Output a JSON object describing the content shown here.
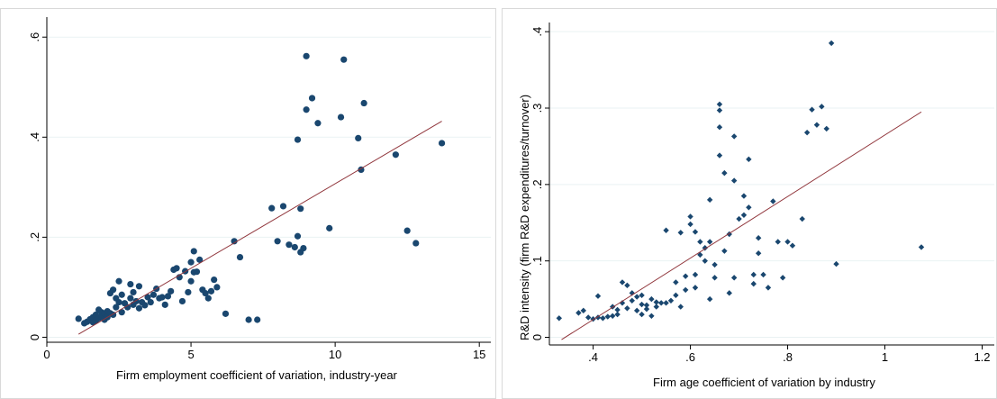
{
  "colors": {
    "marker": "#1a476f",
    "fit_line": "#90353b",
    "grid": "#eaf2f3",
    "axis": "#000000"
  },
  "chart_data": [
    {
      "type": "scatter",
      "marker": "circle",
      "title": "",
      "xlabel": "Firm employment coefficient of variation, industry-year",
      "ylabel": "",
      "xlim": [
        0,
        15.4
      ],
      "ylim": [
        -0.01,
        0.64
      ],
      "xticks": [
        0,
        5,
        10,
        15
      ],
      "xtick_labels": [
        "0",
        "5",
        "10",
        "15"
      ],
      "yticks": [
        0,
        0.2,
        0.4,
        0.6
      ],
      "ytick_labels": [
        "0",
        ".2",
        ".4",
        ".6"
      ],
      "grid": true,
      "fit_line": {
        "x": [
          1.1,
          13.7
        ],
        "y": [
          0.006,
          0.432
        ]
      },
      "points": [
        [
          1.1,
          0.037
        ],
        [
          1.3,
          0.028
        ],
        [
          1.4,
          0.031
        ],
        [
          1.5,
          0.036
        ],
        [
          1.6,
          0.03
        ],
        [
          1.6,
          0.04
        ],
        [
          1.7,
          0.045
        ],
        [
          1.7,
          0.033
        ],
        [
          1.8,
          0.055
        ],
        [
          1.8,
          0.038
        ],
        [
          1.9,
          0.05
        ],
        [
          1.9,
          0.042
        ],
        [
          2.0,
          0.035
        ],
        [
          2.0,
          0.047
        ],
        [
          2.1,
          0.052
        ],
        [
          2.1,
          0.04
        ],
        [
          2.2,
          0.048
        ],
        [
          2.2,
          0.088
        ],
        [
          2.3,
          0.045
        ],
        [
          2.3,
          0.095
        ],
        [
          2.4,
          0.078
        ],
        [
          2.4,
          0.06
        ],
        [
          2.5,
          0.112
        ],
        [
          2.5,
          0.07
        ],
        [
          2.6,
          0.05
        ],
        [
          2.6,
          0.085
        ],
        [
          2.7,
          0.068
        ],
        [
          2.8,
          0.06
        ],
        [
          2.9,
          0.106
        ],
        [
          2.9,
          0.078
        ],
        [
          3.0,
          0.09
        ],
        [
          3.0,
          0.065
        ],
        [
          3.1,
          0.072
        ],
        [
          3.2,
          0.058
        ],
        [
          3.2,
          0.102
        ],
        [
          3.3,
          0.07
        ],
        [
          3.4,
          0.064
        ],
        [
          3.5,
          0.08
        ],
        [
          3.6,
          0.07
        ],
        [
          3.7,
          0.085
        ],
        [
          3.8,
          0.097
        ],
        [
          3.9,
          0.078
        ],
        [
          4.0,
          0.08
        ],
        [
          4.1,
          0.065
        ],
        [
          4.2,
          0.082
        ],
        [
          4.3,
          0.092
        ],
        [
          4.4,
          0.135
        ],
        [
          4.5,
          0.138
        ],
        [
          4.6,
          0.12
        ],
        [
          4.7,
          0.072
        ],
        [
          4.8,
          0.132
        ],
        [
          4.9,
          0.09
        ],
        [
          5.0,
          0.112
        ],
        [
          5.0,
          0.15
        ],
        [
          5.1,
          0.13
        ],
        [
          5.1,
          0.172
        ],
        [
          5.2,
          0.131
        ],
        [
          5.3,
          0.155
        ],
        [
          5.4,
          0.095
        ],
        [
          5.5,
          0.088
        ],
        [
          5.6,
          0.078
        ],
        [
          5.7,
          0.092
        ],
        [
          5.8,
          0.115
        ],
        [
          5.9,
          0.1
        ],
        [
          6.2,
          0.047
        ],
        [
          6.5,
          0.192
        ],
        [
          6.7,
          0.16
        ],
        [
          7.0,
          0.035
        ],
        [
          7.3,
          0.035
        ],
        [
          7.8,
          0.258
        ],
        [
          8.0,
          0.192
        ],
        [
          8.2,
          0.262
        ],
        [
          8.4,
          0.185
        ],
        [
          8.6,
          0.18
        ],
        [
          8.7,
          0.395
        ],
        [
          8.7,
          0.202
        ],
        [
          8.8,
          0.17
        ],
        [
          8.8,
          0.257
        ],
        [
          8.9,
          0.178
        ],
        [
          9.0,
          0.455
        ],
        [
          9.0,
          0.562
        ],
        [
          9.2,
          0.478
        ],
        [
          9.4,
          0.428
        ],
        [
          9.8,
          0.218
        ],
        [
          10.2,
          0.44
        ],
        [
          10.3,
          0.555
        ],
        [
          10.8,
          0.398
        ],
        [
          10.9,
          0.335
        ],
        [
          11.0,
          0.468
        ],
        [
          12.1,
          0.365
        ],
        [
          12.5,
          0.213
        ],
        [
          12.8,
          0.188
        ],
        [
          13.7,
          0.388
        ]
      ]
    },
    {
      "type": "scatter",
      "marker": "diamond",
      "title": "",
      "xlabel": "Firm age coefficient of variation by industry",
      "ylabel": "R&D intensity (firm R&D expenditures/turnover)",
      "xlim": [
        0.31,
        1.225
      ],
      "ylim": [
        -0.01,
        0.412
      ],
      "xticks": [
        0.4,
        0.6,
        0.8,
        1.0,
        1.2
      ],
      "xtick_labels": [
        ".4",
        ".6",
        ".8",
        "1",
        "1.2"
      ],
      "yticks": [
        0,
        0.1,
        0.2,
        0.3,
        0.4
      ],
      "ytick_labels": [
        "0",
        ".1",
        ".2",
        ".3",
        ".4"
      ],
      "grid": true,
      "fit_line": {
        "x": [
          0.335,
          1.075
        ],
        "y": [
          -0.003,
          0.295
        ]
      },
      "points": [
        [
          0.33,
          0.025
        ],
        [
          0.37,
          0.032
        ],
        [
          0.38,
          0.035
        ],
        [
          0.39,
          0.026
        ],
        [
          0.4,
          0.024
        ],
        [
          0.41,
          0.054
        ],
        [
          0.41,
          0.026
        ],
        [
          0.42,
          0.025
        ],
        [
          0.43,
          0.027
        ],
        [
          0.44,
          0.028
        ],
        [
          0.44,
          0.04
        ],
        [
          0.45,
          0.036
        ],
        [
          0.45,
          0.03
        ],
        [
          0.46,
          0.045
        ],
        [
          0.46,
          0.072
        ],
        [
          0.47,
          0.068
        ],
        [
          0.47,
          0.038
        ],
        [
          0.48,
          0.058
        ],
        [
          0.48,
          0.048
        ],
        [
          0.49,
          0.053
        ],
        [
          0.49,
          0.035
        ],
        [
          0.5,
          0.043
        ],
        [
          0.5,
          0.055
        ],
        [
          0.5,
          0.03
        ],
        [
          0.51,
          0.042
        ],
        [
          0.51,
          0.037
        ],
        [
          0.52,
          0.05
        ],
        [
          0.52,
          0.028
        ],
        [
          0.53,
          0.04
        ],
        [
          0.53,
          0.046
        ],
        [
          0.54,
          0.045
        ],
        [
          0.55,
          0.14
        ],
        [
          0.55,
          0.045
        ],
        [
          0.56,
          0.048
        ],
        [
          0.57,
          0.055
        ],
        [
          0.57,
          0.072
        ],
        [
          0.58,
          0.137
        ],
        [
          0.58,
          0.04
        ],
        [
          0.59,
          0.062
        ],
        [
          0.59,
          0.08
        ],
        [
          0.6,
          0.148
        ],
        [
          0.6,
          0.158
        ],
        [
          0.61,
          0.082
        ],
        [
          0.61,
          0.065
        ],
        [
          0.61,
          0.138
        ],
        [
          0.62,
          0.125
        ],
        [
          0.62,
          0.108
        ],
        [
          0.63,
          0.1
        ],
        [
          0.63,
          0.117
        ],
        [
          0.64,
          0.125
        ],
        [
          0.64,
          0.18
        ],
        [
          0.64,
          0.05
        ],
        [
          0.65,
          0.078
        ],
        [
          0.65,
          0.095
        ],
        [
          0.66,
          0.275
        ],
        [
          0.66,
          0.297
        ],
        [
          0.66,
          0.305
        ],
        [
          0.66,
          0.238
        ],
        [
          0.67,
          0.113
        ],
        [
          0.67,
          0.215
        ],
        [
          0.68,
          0.058
        ],
        [
          0.68,
          0.135
        ],
        [
          0.69,
          0.263
        ],
        [
          0.69,
          0.205
        ],
        [
          0.69,
          0.078
        ],
        [
          0.7,
          0.155
        ],
        [
          0.71,
          0.185
        ],
        [
          0.71,
          0.16
        ],
        [
          0.72,
          0.233
        ],
        [
          0.72,
          0.17
        ],
        [
          0.73,
          0.082
        ],
        [
          0.73,
          0.07
        ],
        [
          0.74,
          0.11
        ],
        [
          0.74,
          0.13
        ],
        [
          0.75,
          0.082
        ],
        [
          0.76,
          0.065
        ],
        [
          0.77,
          0.178
        ],
        [
          0.78,
          0.125
        ],
        [
          0.79,
          0.078
        ],
        [
          0.8,
          0.125
        ],
        [
          0.81,
          0.12
        ],
        [
          0.83,
          0.155
        ],
        [
          0.84,
          0.268
        ],
        [
          0.85,
          0.298
        ],
        [
          0.86,
          0.278
        ],
        [
          0.87,
          0.302
        ],
        [
          0.88,
          0.273
        ],
        [
          0.89,
          0.385
        ],
        [
          0.9,
          0.096
        ],
        [
          1.075,
          0.118
        ]
      ]
    }
  ]
}
